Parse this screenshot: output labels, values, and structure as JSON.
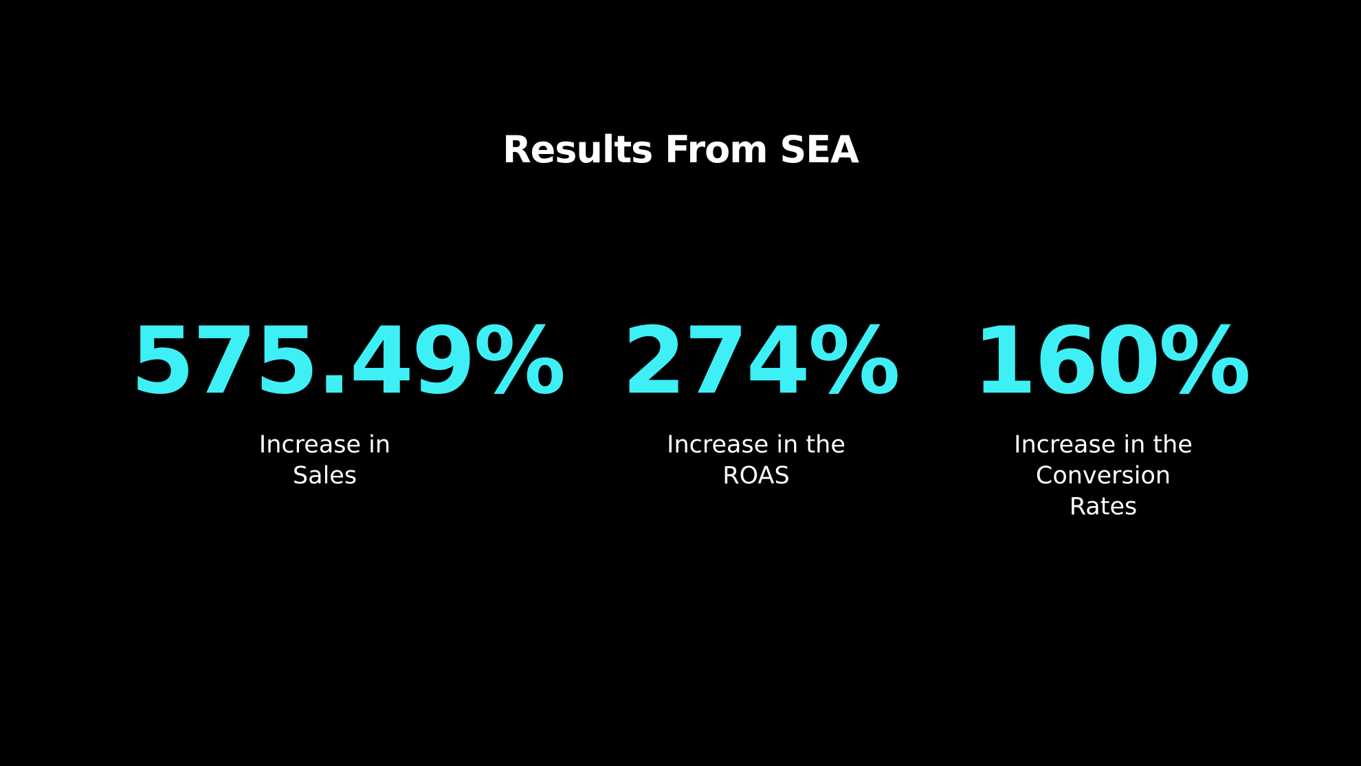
{
  "title": "Results From SEA",
  "accent_color": "#3ef0f6",
  "stats": [
    {
      "value": "575.49%",
      "label_lines": [
        "Increase in",
        "Sales"
      ]
    },
    {
      "value": "274%",
      "label_lines": [
        "Increase in the",
        "ROAS"
      ]
    },
    {
      "value": "160%",
      "label_lines": [
        "Increase in the",
        "Conversion",
        "Rates"
      ]
    }
  ]
}
